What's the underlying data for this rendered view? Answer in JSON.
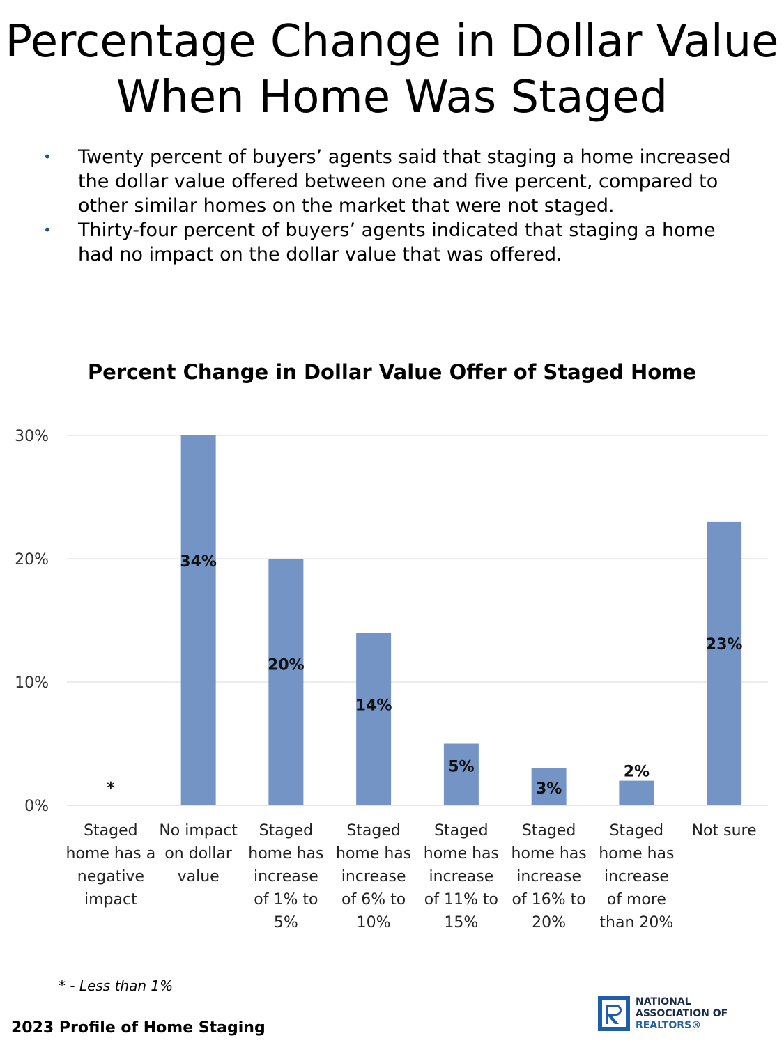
{
  "page": {
    "title": "Percentage Change in Dollar Value When Home Was Staged",
    "bullets": [
      "Twenty percent of buyers’ agents said that staging a home increased the dollar value offered between one and five percent, compared to other similar homes on the market that were not staged.",
      "Thirty-four percent of buyers’ agents indicated that staging a home had no impact on the dollar value that was offered."
    ],
    "bullet_symbol": "•",
    "footnote": "* - Less than 1%",
    "footer_left": "2023 Profile of Home Staging",
    "logo": {
      "lines": [
        "NATIONAL",
        "ASSOCIATION OF",
        "REALTORS®"
      ],
      "icon": "realtor-r-logo-icon"
    }
  },
  "chart_data": {
    "type": "bar",
    "title": "Percent Change in Dollar Value Offer of Staged Home",
    "categories": [
      "Staged home has a negative impact",
      "No impact on dollar value",
      "Staged home has increase of 1% to 5%",
      "Staged home has increase of 6% to 10%",
      "Staged home has increase of 11% to 15%",
      "Staged home has increase of 16% to 20%",
      "Staged home has increase of more than 20%",
      "Not sure"
    ],
    "values": [
      0,
      34,
      20,
      14,
      5,
      3,
      2,
      23
    ],
    "data_labels": [
      "*",
      "34%",
      "20%",
      "14%",
      "5%",
      "3%",
      "2%",
      "23%"
    ],
    "ylim": [
      0,
      30
    ],
    "yticks": [
      "0%",
      "10%",
      "20%",
      "30%"
    ],
    "ytick_values": [
      0,
      10,
      20,
      30
    ],
    "grid": true,
    "bar_color": "#7394c5",
    "xlabel": "",
    "ylabel": ""
  }
}
